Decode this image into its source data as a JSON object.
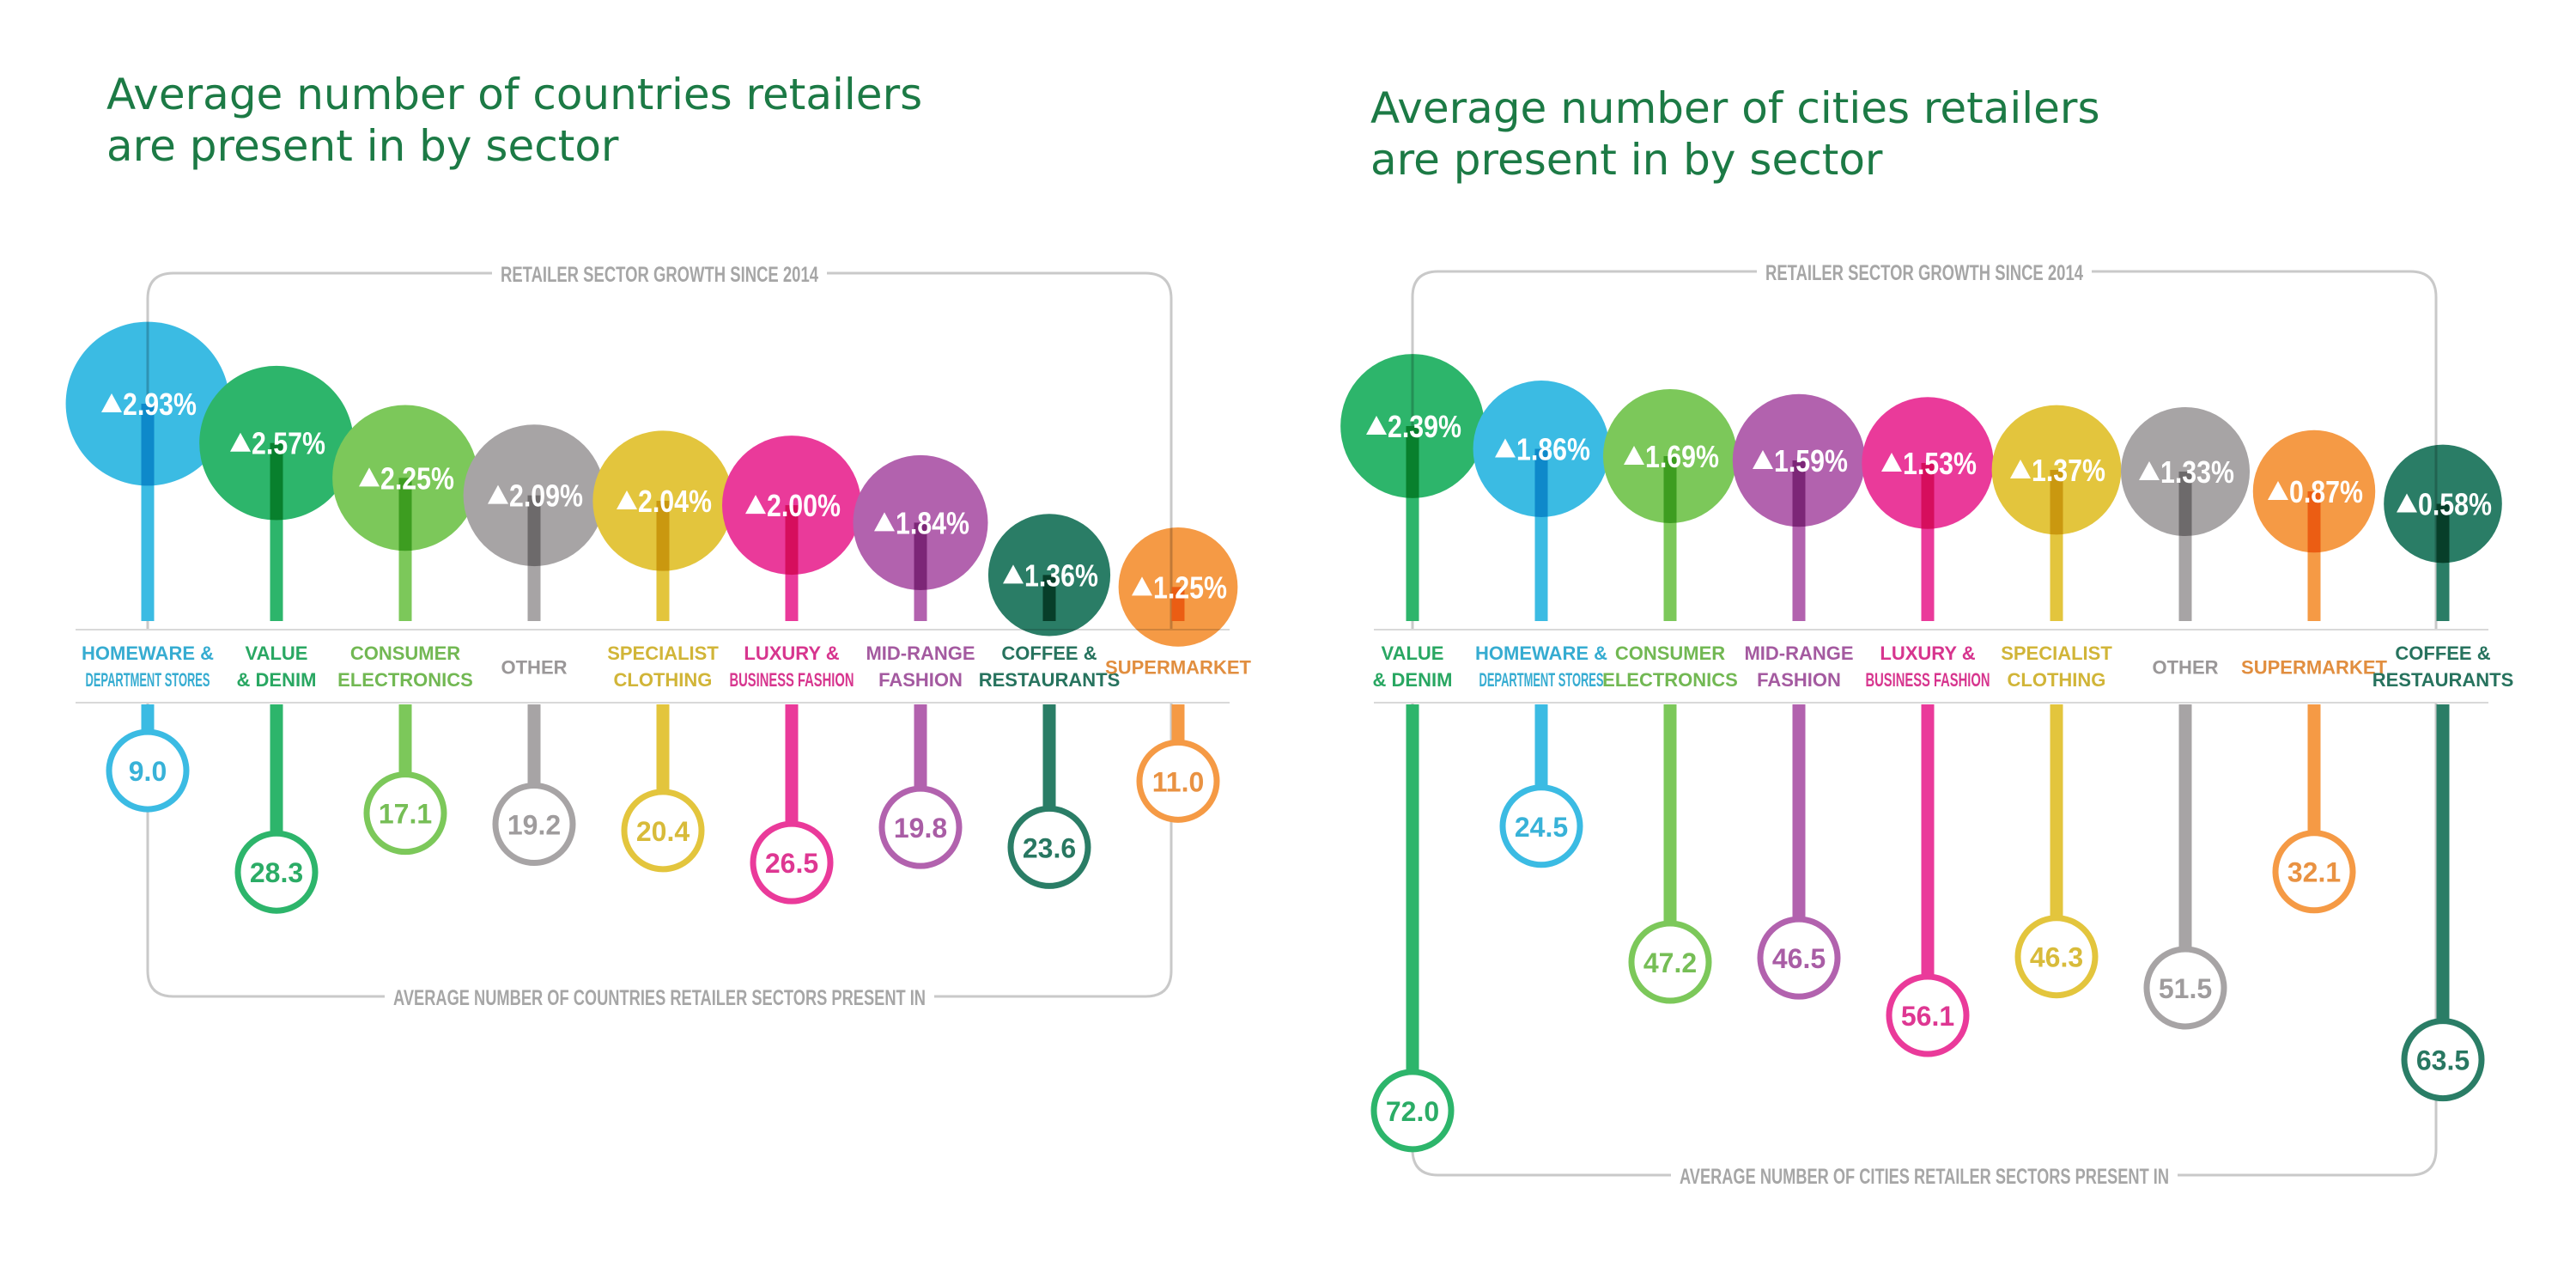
{
  "chart_data": [
    {
      "type": "bubble-lollipop",
      "title_lines": [
        "Average number of countries retailers",
        "are present in by sector"
      ],
      "top_label": "RETAILER SECTOR GROWTH SINCE 2014",
      "bottom_label": "AVERAGE NUMBER OF COUNTRIES RETAILER SECTORS PRESENT IN",
      "growth_scale": [
        0,
        3.0
      ],
      "value_scale": [
        0,
        80
      ],
      "items": [
        {
          "label": [
            "HOMEWARE &",
            "DEPARTMENT STORES"
          ],
          "growth": 2.93,
          "growth_label": "2.93%",
          "value": 9.0,
          "value_label": "9.0",
          "color": "#3bbbe3"
        },
        {
          "label": [
            "VALUE",
            "& DENIM"
          ],
          "growth": 2.57,
          "growth_label": "2.57%",
          "value": 28.3,
          "value_label": "28.3",
          "color": "#2db56b"
        },
        {
          "label": [
            "CONSUMER",
            "ELECTRONICS"
          ],
          "growth": 2.25,
          "growth_label": "2.25%",
          "value": 17.1,
          "value_label": "17.1",
          "color": "#7cc85a"
        },
        {
          "label": [
            "OTHER"
          ],
          "growth": 2.09,
          "growth_label": "2.09%",
          "value": 19.2,
          "value_label": "19.2",
          "color": "#a7a4a5"
        },
        {
          "label": [
            "SPECIALIST",
            "CLOTHING"
          ],
          "growth": 2.04,
          "growth_label": "2.04%",
          "value": 20.4,
          "value_label": "20.4",
          "color": "#e3c53d"
        },
        {
          "label": [
            "LUXURY &",
            "BUSINESS FASHION"
          ],
          "growth": 2.0,
          "growth_label": "2.00%",
          "value": 26.5,
          "value_label": "26.5",
          "color": "#ea3a9a"
        },
        {
          "label": [
            "MID-RANGE",
            "FASHION"
          ],
          "growth": 1.84,
          "growth_label": "1.84%",
          "value": 19.8,
          "value_label": "19.8",
          "color": "#b262ae"
        },
        {
          "label": [
            "COFFEE &",
            "RESTAURANTS"
          ],
          "growth": 1.36,
          "growth_label": "1.36%",
          "value": 23.6,
          "value_label": "23.6",
          "color": "#2a7d66"
        },
        {
          "label": [
            "SUPERMARKET"
          ],
          "growth": 1.25,
          "growth_label": "1.25%",
          "value": 11.0,
          "value_label": "11.0",
          "color": "#f59a45"
        }
      ]
    },
    {
      "type": "bubble-lollipop",
      "title_lines": [
        "Average number of cities retailers",
        "are present in by sector"
      ],
      "top_label": "RETAILER SECTOR GROWTH SINCE 2014",
      "bottom_label": "AVERAGE NUMBER OF CITIES RETAILER SECTORS PRESENT IN",
      "growth_scale": [
        0,
        3.0
      ],
      "value_scale": [
        0,
        80
      ],
      "items": [
        {
          "label": [
            "VALUE",
            "& DENIM"
          ],
          "growth": 2.39,
          "growth_label": "2.39%",
          "value": 72.0,
          "value_label": "72.0",
          "color": "#2db56b"
        },
        {
          "label": [
            "HOMEWARE &",
            "DEPARTMENT STORES"
          ],
          "growth": 1.86,
          "growth_label": "1.86%",
          "value": 24.5,
          "value_label": "24.5",
          "color": "#3bbbe3"
        },
        {
          "label": [
            "CONSUMER",
            "ELECTRONICS"
          ],
          "growth": 1.69,
          "growth_label": "1.69%",
          "value": 47.2,
          "value_label": "47.2",
          "color": "#7cc85a"
        },
        {
          "label": [
            "MID-RANGE",
            "FASHION"
          ],
          "growth": 1.59,
          "growth_label": "1.59%",
          "value": 46.5,
          "value_label": "46.5",
          "color": "#b262ae"
        },
        {
          "label": [
            "LUXURY &",
            "BUSINESS FASHION"
          ],
          "growth": 1.53,
          "growth_label": "1.53%",
          "value": 56.1,
          "value_label": "56.1",
          "color": "#ea3a9a"
        },
        {
          "label": [
            "SPECIALIST",
            "CLOTHING"
          ],
          "growth": 1.37,
          "growth_label": "1.37%",
          "value": 46.3,
          "value_label": "46.3",
          "color": "#e3c53d"
        },
        {
          "label": [
            "OTHER"
          ],
          "growth": 1.33,
          "growth_label": "1.33%",
          "value": 51.5,
          "value_label": "51.5",
          "color": "#a7a4a5"
        },
        {
          "label": [
            "SUPERMARKET"
          ],
          "growth": 0.87,
          "growth_label": "0.87%",
          "value": 32.1,
          "value_label": "32.1",
          "color": "#f59a45"
        },
        {
          "label": [
            "COFFEE &",
            "RESTAURANTS"
          ],
          "growth": 0.58,
          "growth_label": "0.58%",
          "value": 63.5,
          "value_label": "63.5",
          "color": "#2a7d66"
        }
      ]
    }
  ]
}
